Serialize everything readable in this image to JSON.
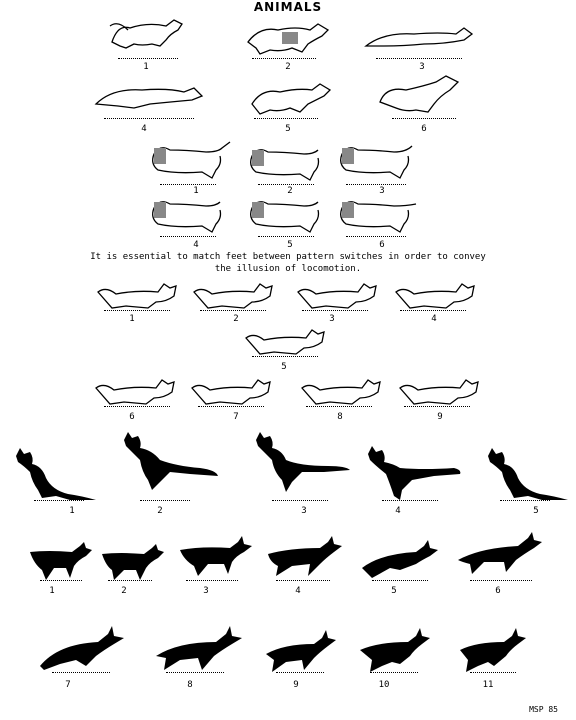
{
  "title": "ANIMALS",
  "caption_line1": "It is essential to match feet between pattern switches in order to convey",
  "caption_line2": "the illusion of locomotion.",
  "signature": "MSP 85",
  "dogs": {
    "labels": [
      "1",
      "2",
      "3",
      "4",
      "5",
      "6"
    ]
  },
  "puppies": {
    "labels": [
      "1",
      "2",
      "3",
      "4",
      "5",
      "6"
    ]
  },
  "cats": {
    "labels": [
      "1",
      "2",
      "3",
      "4",
      "5",
      "6",
      "7",
      "8",
      "9"
    ]
  },
  "kangaroos": {
    "labels": [
      "1",
      "2",
      "3",
      "4",
      "5"
    ]
  },
  "deer": {
    "labels": [
      "1",
      "2",
      "3",
      "4",
      "5",
      "6",
      "7",
      "8",
      "9",
      "10",
      "11"
    ]
  }
}
